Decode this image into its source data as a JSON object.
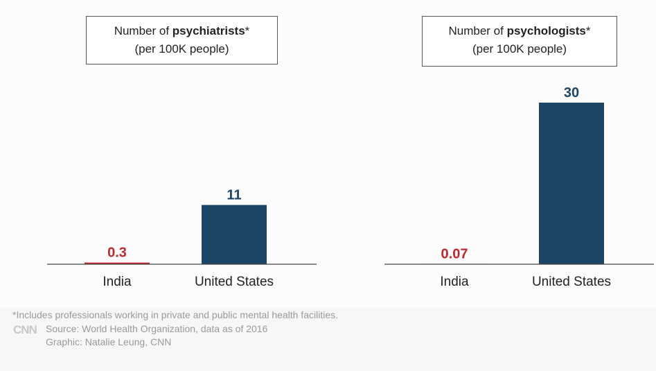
{
  "chart_data": [
    {
      "type": "bar",
      "title_prefix": "Number of ",
      "title_bold": "psychiatrists",
      "title_suffix": "*",
      "subtitle": "(per 100K people)",
      "categories": [
        "India",
        "United States"
      ],
      "values": [
        0.3,
        11
      ],
      "value_labels": [
        "0.3",
        "11"
      ],
      "bar_colors": [
        "#c1272d",
        "#1d4566"
      ],
      "label_colors": [
        "#c1272d",
        "#1d4566"
      ],
      "ylim": [
        0,
        30
      ]
    },
    {
      "type": "bar",
      "title_prefix": "Number of ",
      "title_bold": "psychologists",
      "title_suffix": "*",
      "subtitle": "(per 100K people)",
      "categories": [
        "India",
        "United States"
      ],
      "values": [
        0.07,
        30
      ],
      "value_labels": [
        "0.07",
        "30"
      ],
      "bar_colors": [
        "#c1272d",
        "#1d4566"
      ],
      "label_colors": [
        "#c1272d",
        "#1d4566"
      ],
      "ylim": [
        0,
        30
      ]
    }
  ],
  "footer": {
    "note": "*Includes professionals working in private and public mental health facilities.",
    "logo": "CNN",
    "source": "Source: World Health Organization, data as of 2016",
    "credit": "Graphic: Natalie Leung, CNN"
  }
}
